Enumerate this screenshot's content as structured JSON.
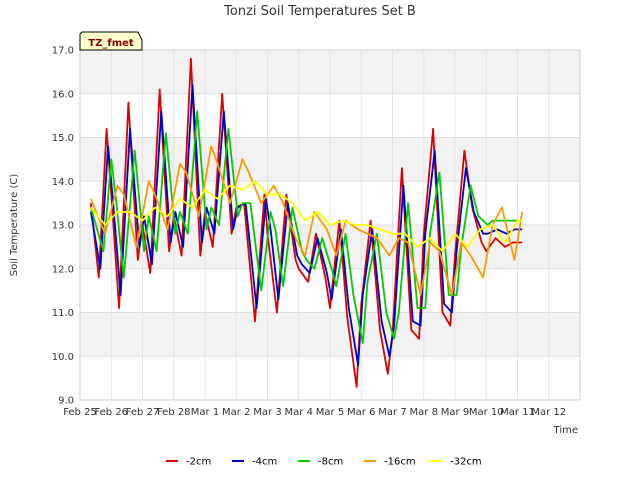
{
  "chart_data": {
    "type": "line",
    "title": "Tonzi Soil Temperatures Set B",
    "xlabel": "Time",
    "ylabel": "Soil Temperature (C)",
    "tag": "TZ_fmet",
    "xlim": [
      0,
      16
    ],
    "ylim": [
      9.0,
      17.0
    ],
    "x_tick_labels": [
      "Feb 25",
      "Feb 26",
      "Feb 27",
      "Feb 28",
      "Mar 1",
      "Mar 2",
      "Mar 3",
      "Mar 4",
      "Mar 5",
      "Mar 6",
      "Mar 7",
      "Mar 8",
      "Mar 9",
      "Mar 10",
      "Mar 11",
      "Mar 12"
    ],
    "y_ticks": [
      9.0,
      10.0,
      11.0,
      12.0,
      13.0,
      14.0,
      15.0,
      16.0,
      17.0
    ],
    "y_tick_labels": [
      "9.0",
      "10.0",
      "11.0",
      "12.0",
      "13.0",
      "14.0",
      "15.0",
      "16.0",
      "17.0"
    ],
    "grid": true,
    "legend_position": "bottom",
    "series": [
      {
        "name": "-2cm",
        "color": "#dd0000",
        "x": [
          0.35,
          0.6,
          0.85,
          1.0,
          1.25,
          1.55,
          1.85,
          2.0,
          2.25,
          2.55,
          2.85,
          3.0,
          3.25,
          3.55,
          3.85,
          4.0,
          4.25,
          4.55,
          4.85,
          5.0,
          5.25,
          5.6,
          5.9,
          6.0,
          6.3,
          6.6,
          6.9,
          7.0,
          7.3,
          7.55,
          7.85,
          8.0,
          8.3,
          8.55,
          8.85,
          9.0,
          9.3,
          9.6,
          9.85,
          10.0,
          10.3,
          10.6,
          10.85,
          11.0,
          11.3,
          11.6,
          11.85,
          12.0,
          12.3,
          12.55,
          12.85,
          13.0,
          13.3,
          13.6,
          13.85,
          14.0,
          14.15
        ],
        "y": [
          13.5,
          11.8,
          15.2,
          13.7,
          11.1,
          15.8,
          12.2,
          13.0,
          11.9,
          16.1,
          12.4,
          13.2,
          12.3,
          16.8,
          12.3,
          13.3,
          12.5,
          16.0,
          12.8,
          13.4,
          13.5,
          10.8,
          13.7,
          12.8,
          11.0,
          13.7,
          12.2,
          12.0,
          11.7,
          12.8,
          11.8,
          11.1,
          13.1,
          10.9,
          9.3,
          11.2,
          13.1,
          10.6,
          9.6,
          10.5,
          14.3,
          10.6,
          10.4,
          12.8,
          15.2,
          11.0,
          10.7,
          12.3,
          14.7,
          13.4,
          12.6,
          12.4,
          12.7,
          12.5,
          12.6,
          12.6,
          12.6
        ]
      },
      {
        "name": "-4cm",
        "color": "#0000cc",
        "x": [
          0.35,
          0.65,
          0.9,
          1.05,
          1.3,
          1.6,
          1.9,
          2.05,
          2.3,
          2.6,
          2.9,
          3.05,
          3.3,
          3.6,
          3.9,
          4.05,
          4.3,
          4.6,
          4.9,
          5.05,
          5.3,
          5.65,
          5.95,
          6.1,
          6.35,
          6.65,
          6.95,
          7.1,
          7.35,
          7.6,
          7.9,
          8.05,
          8.35,
          8.6,
          8.9,
          9.05,
          9.35,
          9.65,
          9.9,
          10.05,
          10.35,
          10.65,
          10.9,
          11.05,
          11.35,
          11.65,
          11.9,
          12.05,
          12.35,
          12.6,
          12.9,
          13.05,
          13.35,
          13.65,
          13.9,
          14.05,
          14.15
        ],
        "y": [
          13.3,
          12.0,
          14.8,
          13.6,
          11.4,
          15.2,
          12.5,
          13.2,
          12.1,
          15.6,
          12.6,
          13.3,
          12.5,
          16.2,
          12.6,
          13.4,
          12.8,
          15.6,
          12.9,
          13.4,
          13.5,
          11.1,
          13.6,
          12.9,
          11.3,
          13.5,
          12.3,
          12.1,
          11.9,
          12.7,
          11.9,
          11.3,
          12.9,
          11.1,
          9.8,
          11.4,
          12.9,
          10.8,
          10.0,
          10.7,
          13.9,
          10.8,
          10.7,
          12.8,
          14.7,
          11.2,
          11.0,
          12.4,
          14.3,
          13.3,
          12.8,
          12.8,
          12.9,
          12.8,
          12.9,
          12.9,
          12.9
        ]
      },
      {
        "name": "-8cm",
        "color": "#00cc00",
        "x": [
          0.35,
          0.75,
          1.0,
          1.15,
          1.4,
          1.75,
          2.05,
          2.2,
          2.45,
          2.75,
          3.05,
          3.2,
          3.45,
          3.75,
          4.05,
          4.2,
          4.45,
          4.75,
          5.05,
          5.2,
          5.45,
          5.8,
          6.1,
          6.25,
          6.5,
          6.8,
          7.1,
          7.25,
          7.5,
          7.75,
          8.05,
          8.2,
          8.5,
          8.75,
          9.05,
          9.2,
          9.5,
          9.8,
          10.05,
          10.2,
          10.5,
          10.8,
          11.05,
          11.2,
          11.5,
          11.8,
          12.05,
          12.2,
          12.5,
          12.75,
          13.05,
          13.2,
          13.5,
          13.8,
          14.05,
          14.15
        ],
        "y": [
          13.4,
          12.4,
          14.5,
          13.6,
          11.8,
          14.7,
          12.4,
          13.2,
          12.4,
          15.1,
          12.8,
          13.3,
          12.8,
          15.6,
          12.9,
          13.4,
          13.0,
          15.2,
          13.2,
          13.5,
          13.5,
          11.5,
          13.3,
          12.9,
          11.6,
          13.4,
          12.4,
          12.2,
          12.0,
          12.7,
          12.0,
          11.6,
          12.8,
          11.4,
          10.3,
          11.7,
          12.8,
          11.0,
          10.4,
          11.0,
          13.5,
          11.1,
          11.1,
          12.8,
          14.2,
          11.4,
          11.4,
          12.5,
          13.9,
          13.2,
          13.0,
          13.1,
          13.1,
          13.1,
          13.1,
          13.1
        ]
      },
      {
        "name": "-16cm",
        "color": "#ff9900",
        "x": [
          0.35,
          0.8,
          1.2,
          1.4,
          1.8,
          2.2,
          2.4,
          2.8,
          3.2,
          3.4,
          3.8,
          4.2,
          4.4,
          4.8,
          5.2,
          5.4,
          5.8,
          6.2,
          6.5,
          6.9,
          7.2,
          7.5,
          7.9,
          8.2,
          8.5,
          8.9,
          9.2,
          9.5,
          9.9,
          10.2,
          10.5,
          10.9,
          11.2,
          11.5,
          11.9,
          12.2,
          12.5,
          12.9,
          13.2,
          13.5,
          13.9,
          14.15
        ],
        "y": [
          13.6,
          12.8,
          13.9,
          13.7,
          12.5,
          14.0,
          13.7,
          12.9,
          14.4,
          14.2,
          13.2,
          14.8,
          14.4,
          13.5,
          14.5,
          14.2,
          13.5,
          13.9,
          13.5,
          12.7,
          12.3,
          13.3,
          12.9,
          12.3,
          13.1,
          12.9,
          12.8,
          12.7,
          12.3,
          12.7,
          12.6,
          11.4,
          12.6,
          12.4,
          11.4,
          12.6,
          12.3,
          11.8,
          13.0,
          13.4,
          12.2,
          13.3
        ]
      },
      {
        "name": "-32cm",
        "color": "#ffff00",
        "x": [
          0.35,
          0.8,
          1.2,
          1.6,
          2.0,
          2.4,
          2.8,
          3.2,
          3.6,
          4.0,
          4.4,
          4.8,
          5.2,
          5.6,
          6.0,
          6.4,
          6.8,
          7.2,
          7.6,
          8.0,
          8.4,
          8.8,
          9.2,
          9.6,
          10.0,
          10.4,
          10.8,
          11.2,
          11.6,
          12.0,
          12.4,
          12.8,
          13.2,
          13.6,
          14.0,
          14.15
        ],
        "y": [
          13.4,
          13.0,
          13.3,
          13.3,
          13.1,
          13.4,
          13.2,
          13.6,
          13.4,
          13.8,
          13.6,
          13.9,
          13.8,
          14.0,
          13.7,
          13.7,
          13.5,
          13.1,
          13.3,
          13.0,
          13.1,
          13.0,
          13.0,
          12.9,
          12.8,
          12.8,
          12.5,
          12.7,
          12.4,
          12.8,
          12.5,
          12.9,
          13.0,
          12.6,
          13.1,
          13.1
        ]
      }
    ]
  }
}
